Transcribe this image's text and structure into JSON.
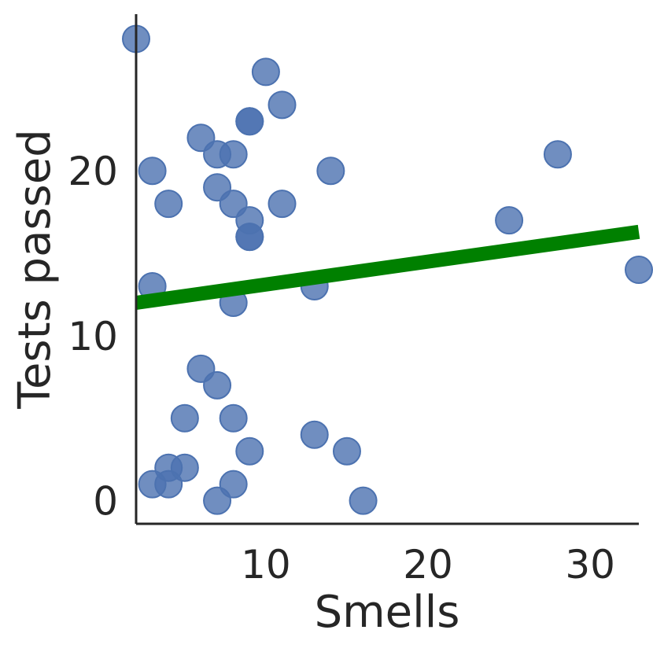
{
  "chart_data": {
    "type": "scatter",
    "title": "",
    "xlabel": "Smells",
    "ylabel": "Tests passed",
    "xlim": [
      2,
      33
    ],
    "ylim": [
      -1.4,
      29.5
    ],
    "xticks": [
      10,
      20,
      30
    ],
    "yticks": [
      0,
      10,
      20
    ],
    "grid": false,
    "point_color": "#4c72b0",
    "series": [
      {
        "points": [
          [
            2,
            28
          ],
          [
            10,
            26
          ],
          [
            11,
            24
          ],
          [
            9,
            23
          ],
          [
            9,
            23
          ],
          [
            6,
            22
          ],
          [
            7,
            21
          ],
          [
            8,
            21
          ],
          [
            28,
            21
          ],
          [
            3,
            20
          ],
          [
            14,
            20
          ],
          [
            7,
            19
          ],
          [
            4,
            18
          ],
          [
            8,
            18
          ],
          [
            11,
            18
          ],
          [
            9,
            17
          ],
          [
            25,
            17
          ],
          [
            9,
            16
          ],
          [
            9,
            16
          ],
          [
            33,
            14
          ],
          [
            3,
            13
          ],
          [
            13,
            13
          ],
          [
            8,
            12
          ],
          [
            6,
            8
          ],
          [
            7,
            7
          ],
          [
            5,
            5
          ],
          [
            8,
            5
          ],
          [
            13,
            4
          ],
          [
            9,
            3
          ],
          [
            15,
            3
          ],
          [
            4,
            2
          ],
          [
            5,
            2
          ],
          [
            3,
            1
          ],
          [
            4,
            1
          ],
          [
            8,
            1
          ],
          [
            7,
            0
          ],
          [
            16,
            0
          ]
        ]
      }
    ],
    "regression_line": {
      "color": "#008000",
      "x": [
        2,
        33
      ],
      "y": [
        12.0,
        16.3
      ]
    }
  }
}
